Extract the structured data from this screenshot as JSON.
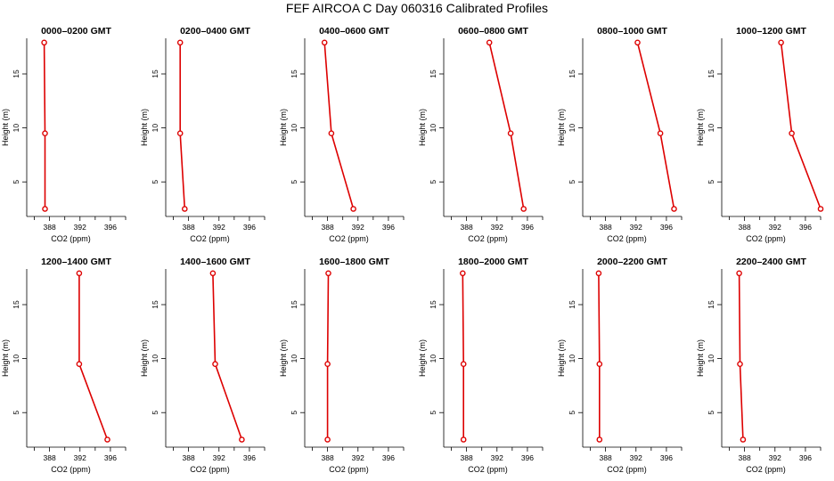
{
  "title": "FEF AIRCOA C  Day 060316  Calibrated Profiles",
  "colors": {
    "series": "#dd0000",
    "axes": "#000000",
    "background": "#ffffff"
  },
  "chart_data": [
    {
      "type": "line",
      "title": "0000–0200 GMT",
      "xlabel": "CO2 (ppm)",
      "ylabel": "Height (m)",
      "xlim": [
        385,
        398
      ],
      "ylim": [
        1.8,
        18.3
      ],
      "xticks": [
        "388",
        "392",
        "396"
      ],
      "yticks": [
        "5",
        "10",
        "15"
      ],
      "grid": false,
      "series": [
        {
          "x": [
            387.3,
            387.4,
            387.4
          ],
          "y": [
            17.9,
            9.5,
            2.5
          ]
        }
      ]
    },
    {
      "type": "line",
      "title": "0200–0400 GMT",
      "xlabel": "CO2 (ppm)",
      "ylabel": "Height (m)",
      "xlim": [
        385,
        398
      ],
      "ylim": [
        1.8,
        18.3
      ],
      "xticks": [
        "388",
        "392",
        "396"
      ],
      "yticks": [
        "5",
        "10",
        "15"
      ],
      "grid": false,
      "series": [
        {
          "x": [
            386.9,
            386.9,
            387.5
          ],
          "y": [
            17.9,
            9.5,
            2.5
          ]
        }
      ]
    },
    {
      "type": "line",
      "title": "0400–0600 GMT",
      "xlabel": "CO2 (ppm)",
      "ylabel": "Height (m)",
      "xlim": [
        385,
        398
      ],
      "ylim": [
        1.8,
        18.3
      ],
      "xticks": [
        "388",
        "392",
        "396"
      ],
      "yticks": [
        "5",
        "10",
        "15"
      ],
      "grid": false,
      "series": [
        {
          "x": [
            387.6,
            388.5,
            391.4
          ],
          "y": [
            17.9,
            9.5,
            2.5
          ]
        }
      ]
    },
    {
      "type": "line",
      "title": "0600–0800 GMT",
      "xlabel": "CO2 (ppm)",
      "ylabel": "Height (m)",
      "xlim": [
        385,
        398
      ],
      "ylim": [
        1.8,
        18.3
      ],
      "xticks": [
        "388",
        "392",
        "396"
      ],
      "yticks": [
        "5",
        "10",
        "15"
      ],
      "grid": false,
      "series": [
        {
          "x": [
            391.0,
            393.8,
            395.5
          ],
          "y": [
            17.9,
            9.5,
            2.5
          ]
        }
      ]
    },
    {
      "type": "line",
      "title": "0800–1000 GMT",
      "xlabel": "CO2 (ppm)",
      "ylabel": "Height (m)",
      "xlim": [
        385,
        398
      ],
      "ylim": [
        1.8,
        18.3
      ],
      "xticks": [
        "388",
        "392",
        "396"
      ],
      "yticks": [
        "5",
        "10",
        "15"
      ],
      "grid": false,
      "series": [
        {
          "x": [
            392.2,
            395.2,
            397.0
          ],
          "y": [
            17.9,
            9.5,
            2.5
          ]
        }
      ]
    },
    {
      "type": "line",
      "title": "1000–1200 GMT",
      "xlabel": "CO2 (ppm)",
      "ylabel": "Height (m)",
      "xlim": [
        385,
        398
      ],
      "ylim": [
        1.8,
        18.3
      ],
      "xticks": [
        "388",
        "392",
        "396"
      ],
      "yticks": [
        "5",
        "10",
        "15"
      ],
      "grid": false,
      "series": [
        {
          "x": [
            392.8,
            394.2,
            398.0
          ],
          "y": [
            17.9,
            9.5,
            2.5
          ]
        }
      ]
    },
    {
      "type": "line",
      "title": "1200–1400 GMT",
      "xlabel": "CO2 (ppm)",
      "ylabel": "Height (m)",
      "xlim": [
        385,
        398
      ],
      "ylim": [
        1.8,
        18.3
      ],
      "xticks": [
        "388",
        "392",
        "396"
      ],
      "yticks": [
        "5",
        "10",
        "15"
      ],
      "grid": false,
      "series": [
        {
          "x": [
            391.9,
            391.9,
            395.6
          ],
          "y": [
            17.9,
            9.5,
            2.5
          ]
        }
      ]
    },
    {
      "type": "line",
      "title": "1400–1600 GMT",
      "xlabel": "CO2 (ppm)",
      "ylabel": "Height (m)",
      "xlim": [
        385,
        398
      ],
      "ylim": [
        1.8,
        18.3
      ],
      "xticks": [
        "388",
        "392",
        "396"
      ],
      "yticks": [
        "5",
        "10",
        "15"
      ],
      "grid": false,
      "series": [
        {
          "x": [
            391.2,
            391.5,
            395.0
          ],
          "y": [
            17.9,
            9.5,
            2.5
          ]
        }
      ]
    },
    {
      "type": "line",
      "title": "1600–1800 GMT",
      "xlabel": "CO2 (ppm)",
      "ylabel": "Height (m)",
      "xlim": [
        385,
        398
      ],
      "ylim": [
        1.8,
        18.3
      ],
      "xticks": [
        "388",
        "392",
        "396"
      ],
      "yticks": [
        "5",
        "10",
        "15"
      ],
      "grid": false,
      "series": [
        {
          "x": [
            388.1,
            388.0,
            388.0
          ],
          "y": [
            17.9,
            9.5,
            2.5
          ]
        }
      ]
    },
    {
      "type": "line",
      "title": "1800–2000 GMT",
      "xlabel": "CO2 (ppm)",
      "ylabel": "Height (m)",
      "xlim": [
        385,
        398
      ],
      "ylim": [
        1.8,
        18.3
      ],
      "xticks": [
        "388",
        "392",
        "396"
      ],
      "yticks": [
        "5",
        "10",
        "15"
      ],
      "grid": false,
      "series": [
        {
          "x": [
            387.5,
            387.6,
            387.6
          ],
          "y": [
            17.9,
            9.5,
            2.5
          ]
        }
      ]
    },
    {
      "type": "line",
      "title": "2000–2200 GMT",
      "xlabel": "CO2 (ppm)",
      "ylabel": "Height (m)",
      "xlim": [
        385,
        398
      ],
      "ylim": [
        1.8,
        18.3
      ],
      "xticks": [
        "388",
        "392",
        "396"
      ],
      "yticks": [
        "5",
        "10",
        "15"
      ],
      "grid": false,
      "series": [
        {
          "x": [
            387.1,
            387.2,
            387.2
          ],
          "y": [
            17.9,
            9.5,
            2.5
          ]
        }
      ]
    },
    {
      "type": "line",
      "title": "2200–2400 GMT",
      "xlabel": "CO2 (ppm)",
      "ylabel": "Height (m)",
      "xlim": [
        385,
        398
      ],
      "ylim": [
        1.8,
        18.3
      ],
      "xticks": [
        "388",
        "392",
        "396"
      ],
      "yticks": [
        "5",
        "10",
        "15"
      ],
      "grid": false,
      "series": [
        {
          "x": [
            387.3,
            387.4,
            387.8
          ],
          "y": [
            17.9,
            9.5,
            2.5
          ]
        }
      ]
    }
  ]
}
